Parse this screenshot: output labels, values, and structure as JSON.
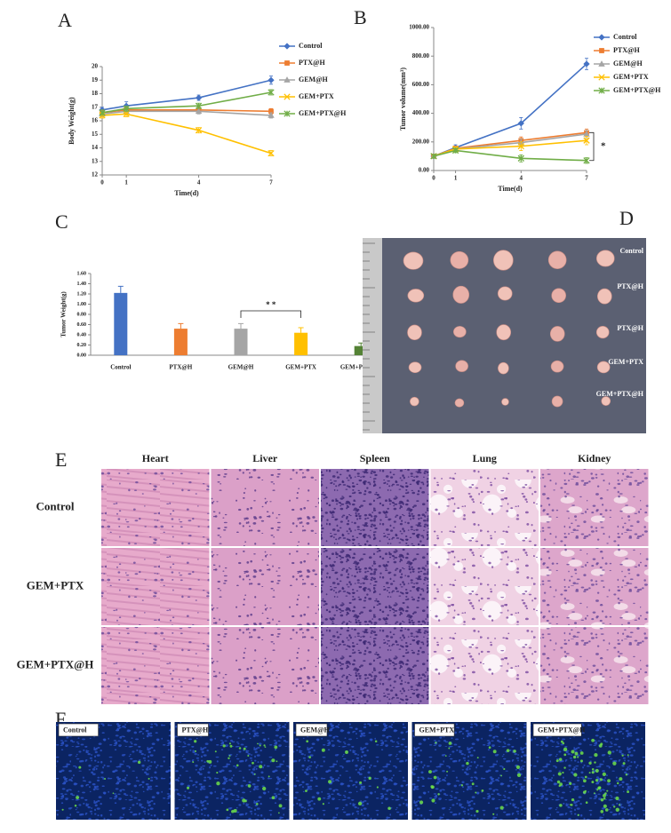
{
  "chart_data": [
    {
      "type": "line",
      "panel_label": "A",
      "xlabel": "Time(d)",
      "ylabel": "Body Weight(g)",
      "x": [
        0,
        1,
        4,
        7
      ],
      "xlim": [
        0,
        7
      ],
      "xticks": [
        0,
        1,
        4,
        7
      ],
      "ylim": [
        12,
        20
      ],
      "yticks": [
        12,
        13,
        14,
        15,
        16,
        17,
        18,
        19,
        20
      ],
      "legend": "outside-right",
      "series": [
        {
          "name": "Control",
          "color": "#4472c4",
          "marker": "diamond",
          "values": [
            16.8,
            17.1,
            17.7,
            19.0
          ],
          "errors": [
            0.2,
            0.3,
            0.2,
            0.3
          ]
        },
        {
          "name": "PTX@H",
          "color": "#ed7d31",
          "marker": "square",
          "values": [
            16.6,
            16.8,
            16.8,
            16.7
          ],
          "errors": [
            0.2,
            0.2,
            0.2,
            0.2
          ]
        },
        {
          "name": "GEM@H",
          "color": "#a5a5a5",
          "marker": "triangle",
          "values": [
            16.5,
            16.7,
            16.7,
            16.4
          ],
          "errors": [
            0.2,
            0.2,
            0.2,
            0.2
          ]
        },
        {
          "name": "GEM+PTX",
          "color": "#ffc000",
          "marker": "x",
          "values": [
            16.4,
            16.5,
            15.3,
            13.6
          ],
          "errors": [
            0.2,
            0.2,
            0.2,
            0.2
          ]
        },
        {
          "name": "GEM+PTX@H",
          "color": "#70ad47",
          "marker": "star",
          "values": [
            16.6,
            16.9,
            17.1,
            18.1
          ],
          "errors": [
            0.2,
            0.2,
            0.2,
            0.2
          ]
        }
      ]
    },
    {
      "type": "line",
      "panel_label": "B",
      "xlabel": "Time(d)",
      "ylabel": "Tumor volume(mm³)",
      "x": [
        0,
        1,
        4,
        7
      ],
      "xlim": [
        0,
        7
      ],
      "xticks": [
        0,
        1,
        4,
        7
      ],
      "ylim": [
        0,
        1000
      ],
      "yticks": [
        {
          "value": 0,
          "label": "0.00"
        },
        {
          "value": 200,
          "label": "200.00"
        },
        {
          "value": 400,
          "label": "400.00"
        },
        {
          "value": 600,
          "label": "600.00"
        },
        {
          "value": 800,
          "label": "800.00"
        },
        {
          "value": 1000,
          "label": "1000.00"
        }
      ],
      "legend": "outside-right",
      "annotation": "*",
      "series": [
        {
          "name": "Control",
          "color": "#4472c4",
          "marker": "diamond",
          "values": [
            100,
            160,
            330,
            745
          ],
          "errors": [
            10,
            20,
            40,
            40
          ]
        },
        {
          "name": "PTX@H",
          "color": "#ed7d31",
          "marker": "square",
          "values": [
            100,
            155,
            210,
            265
          ],
          "errors": [
            10,
            15,
            25,
            25
          ]
        },
        {
          "name": "GEM@H",
          "color": "#a5a5a5",
          "marker": "triangle",
          "values": [
            100,
            150,
            195,
            255
          ],
          "errors": [
            10,
            15,
            25,
            25
          ]
        },
        {
          "name": "GEM+PTX",
          "color": "#ffc000",
          "marker": "x",
          "values": [
            100,
            150,
            170,
            210
          ],
          "errors": [
            10,
            15,
            30,
            30
          ]
        },
        {
          "name": "GEM+PTX@H",
          "color": "#70ad47",
          "marker": "star",
          "values": [
            100,
            140,
            85,
            70
          ],
          "errors": [
            10,
            15,
            25,
            20
          ]
        }
      ]
    },
    {
      "type": "bar",
      "panel_label": "C",
      "ylabel": "Tumor Weight(g)",
      "annotation": "* *",
      "categories": [
        "Control",
        "PTX@H",
        "GEM@H",
        "GEM+PTX",
        "GEM+PTX@H"
      ],
      "values": [
        1.22,
        0.52,
        0.52,
        0.44,
        0.18
      ],
      "errors": [
        0.13,
        0.1,
        0.1,
        0.1,
        0.06
      ],
      "colors": [
        "#4472c4",
        "#ed7d31",
        "#a5a5a5",
        "#ffc000",
        "#548235"
      ],
      "ylim": [
        0,
        1.6
      ],
      "yticks": [
        {
          "value": 0,
          "label": "0.00"
        },
        {
          "value": 0.2,
          "label": "0.20"
        },
        {
          "value": 0.4,
          "label": "0.40"
        },
        {
          "value": 0.6,
          "label": "0.60"
        },
        {
          "value": 0.8,
          "label": "0.80"
        },
        {
          "value": 1.0,
          "label": "1.00"
        },
        {
          "value": 1.2,
          "label": "1.20"
        },
        {
          "value": 1.4,
          "label": "1.40"
        },
        {
          "value": 1.6,
          "label": "1.60"
        }
      ]
    }
  ],
  "photo": {
    "panel_label": "D",
    "labels": [
      "Control",
      "PTX@H",
      "PTX@H",
      "GEM+PTX",
      "GEM+PTX@H"
    ]
  },
  "histology": {
    "panel_label": "E",
    "columns": [
      "Heart",
      "Liver",
      "Spleen",
      "Lung",
      "Kidney"
    ],
    "rows": [
      "Control",
      "GEM+PTX",
      "GEM+PTX@H"
    ]
  },
  "immunofluorescence": {
    "panel_label": "F",
    "labels": [
      "Control",
      "PTX@H",
      "GEM@H",
      "GEM+PTX",
      "GEM+PTX@H"
    ]
  }
}
